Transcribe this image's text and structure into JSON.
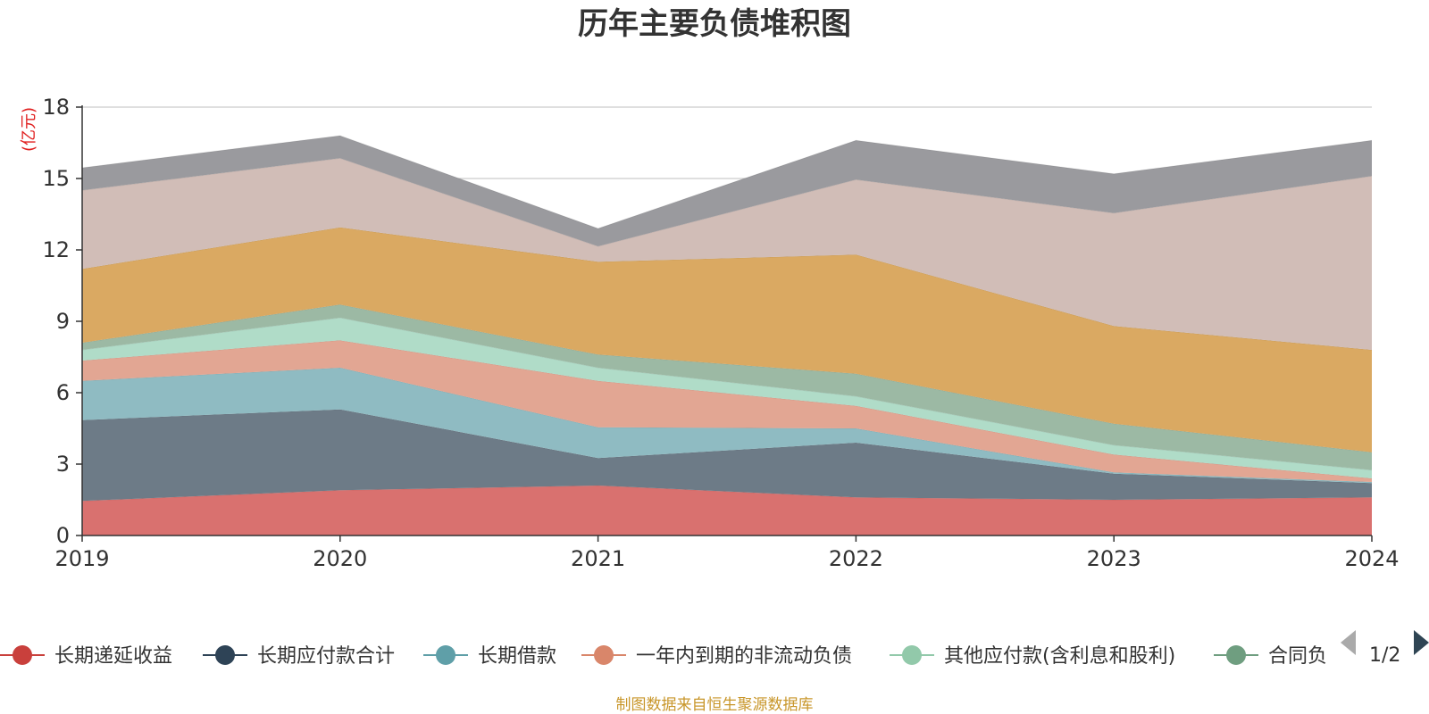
{
  "chart_data": {
    "type": "area",
    "stacked": true,
    "title": "历年主要负债堆积图",
    "unit_label": "(亿元)",
    "categories": [
      "2019",
      "2020",
      "2021",
      "2022",
      "2023",
      "2024"
    ],
    "ylim": [
      0,
      18
    ],
    "yticks": [
      "0",
      "3",
      "6",
      "9",
      "12",
      "15",
      "18"
    ],
    "grid": true,
    "series": [
      {
        "name": "长期递延收益",
        "color": "#d9716f",
        "values": [
          1.45,
          1.9,
          2.1,
          1.6,
          1.5,
          1.6
        ]
      },
      {
        "name": "长期应付款合计",
        "color": "#6d7b87",
        "values": [
          3.4,
          3.4,
          1.15,
          2.3,
          1.1,
          0.6
        ]
      },
      {
        "name": "长期借款",
        "color": "#8fbbc2",
        "values": [
          1.65,
          1.75,
          1.3,
          0.6,
          0.05,
          0.05
        ]
      },
      {
        "name": "一年内到期的非流动负债",
        "color": "#e2a693",
        "values": [
          0.85,
          1.15,
          1.95,
          0.95,
          0.75,
          0.15
        ]
      },
      {
        "name": "其他应付款(含利息和股利)",
        "color": "#b0dcc8",
        "values": [
          0.45,
          0.95,
          0.55,
          0.4,
          0.4,
          0.35
        ]
      },
      {
        "name": "合同负债",
        "color": "#9cb9a4",
        "values": [
          0.3,
          0.55,
          0.55,
          0.95,
          0.9,
          0.75
        ]
      },
      {
        "name": "",
        "color": "#daa962",
        "values": [
          3.1,
          3.25,
          3.9,
          5.0,
          4.1,
          4.3
        ]
      },
      {
        "name": "",
        "color": "#d1bdb7",
        "values": [
          3.3,
          2.9,
          0.65,
          3.15,
          4.75,
          7.3
        ]
      },
      {
        "name": "",
        "color": "#9a9a9e",
        "values": [
          0.95,
          0.95,
          0.75,
          1.65,
          1.65,
          1.5
        ]
      }
    ]
  },
  "legend": {
    "items": [
      "长期递延收益",
      "长期应付款合计",
      "长期借款",
      "一年内到期的非流动负债",
      "其他应付款(含利息和股利)",
      "合同负"
    ],
    "colors": [
      "#c9403c",
      "#2e4356",
      "#5f9fa8",
      "#d9866a",
      "#92c9aa",
      "#6f9e80"
    ],
    "page": "1/2"
  },
  "source": "制图数据来自恒生聚源数据库"
}
